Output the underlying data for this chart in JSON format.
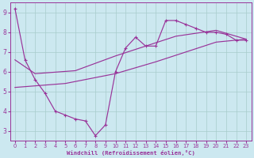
{
  "xlabel": "Windchill (Refroidissement éolien,°C)",
  "xlim": [
    -0.5,
    23.5
  ],
  "ylim": [
    2.5,
    9.5
  ],
  "xticks": [
    0,
    1,
    2,
    3,
    4,
    5,
    6,
    7,
    8,
    9,
    10,
    11,
    12,
    13,
    14,
    15,
    16,
    17,
    18,
    19,
    20,
    21,
    22,
    23
  ],
  "yticks": [
    3,
    4,
    5,
    6,
    7,
    8,
    9
  ],
  "bg_color": "#cce8f0",
  "line_color": "#993399",
  "grid_color": "#a8cccc",
  "line1_x": [
    0,
    1,
    2,
    3,
    4,
    5,
    6,
    7,
    8,
    9,
    10,
    11,
    12,
    13,
    14,
    15,
    16,
    17,
    18,
    19,
    20,
    21,
    22,
    23
  ],
  "line1_y": [
    9.2,
    6.6,
    5.6,
    4.9,
    4.0,
    3.8,
    3.6,
    3.5,
    2.75,
    3.3,
    6.0,
    7.2,
    7.75,
    7.3,
    7.3,
    8.6,
    8.6,
    8.4,
    8.2,
    8.0,
    8.0,
    7.9,
    7.6,
    7.6
  ],
  "line2_x": [
    0,
    2,
    6,
    10,
    13,
    16,
    20,
    23
  ],
  "line2_y": [
    6.6,
    5.9,
    6.05,
    6.8,
    7.3,
    7.8,
    8.1,
    7.65
  ],
  "line3_x": [
    0,
    5,
    10,
    14,
    17,
    20,
    23
  ],
  "line3_y": [
    5.2,
    5.4,
    5.9,
    6.5,
    7.0,
    7.5,
    7.65
  ]
}
